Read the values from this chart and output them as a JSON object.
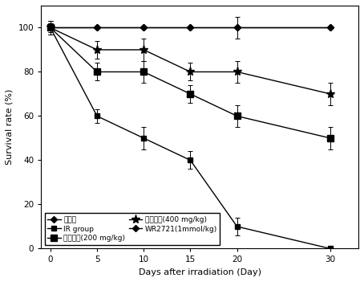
{
  "x": [
    0,
    5,
    10,
    15,
    20,
    30
  ],
  "series": [
    {
      "label": "正常组",
      "y": [
        100,
        100,
        100,
        100,
        100,
        100
      ],
      "yerr": [
        3,
        0,
        0,
        0,
        0,
        0
      ],
      "marker": "D",
      "ms": 4,
      "lw": 1.0
    },
    {
      "label": "IR group",
      "y": [
        100,
        60,
        50,
        40,
        10,
        0
      ],
      "yerr": [
        3,
        3,
        5,
        4,
        4,
        1
      ],
      "marker": "s",
      "ms": 4,
      "lw": 1.0
    },
    {
      "label": "附子多糖(200 mg/kg)",
      "y": [
        100,
        80,
        80,
        70,
        60,
        50
      ],
      "yerr": [
        2,
        4,
        5,
        4,
        5,
        5
      ],
      "marker": "s",
      "ms": 6,
      "lw": 1.0
    },
    {
      "label": "附子多糖(400 mg/kg)",
      "y": [
        100,
        90,
        90,
        80,
        80,
        70
      ],
      "yerr": [
        2,
        4,
        5,
        4,
        5,
        5
      ],
      "marker": "*",
      "ms": 8,
      "lw": 1.0
    },
    {
      "label": "WR2721(1mmol/kg)",
      "y": [
        100,
        100,
        100,
        100,
        100,
        100
      ],
      "yerr": [
        3,
        0,
        0,
        0,
        5,
        0
      ],
      "marker": "D",
      "ms": 4,
      "lw": 1.0
    }
  ],
  "xlabel": "Days after irradiation (Day)",
  "ylabel": "Survival rate (%)",
  "xlim": [
    -1,
    33
  ],
  "ylim": [
    0,
    110
  ],
  "yticks": [
    0,
    20,
    40,
    60,
    80,
    100
  ],
  "xticks": [
    0,
    5,
    10,
    15,
    20,
    30
  ],
  "legend_fontsize": 6.5,
  "axis_label_fontsize": 8,
  "tick_fontsize": 7.5,
  "figsize": [
    4.54,
    3.51
  ],
  "dpi": 100
}
